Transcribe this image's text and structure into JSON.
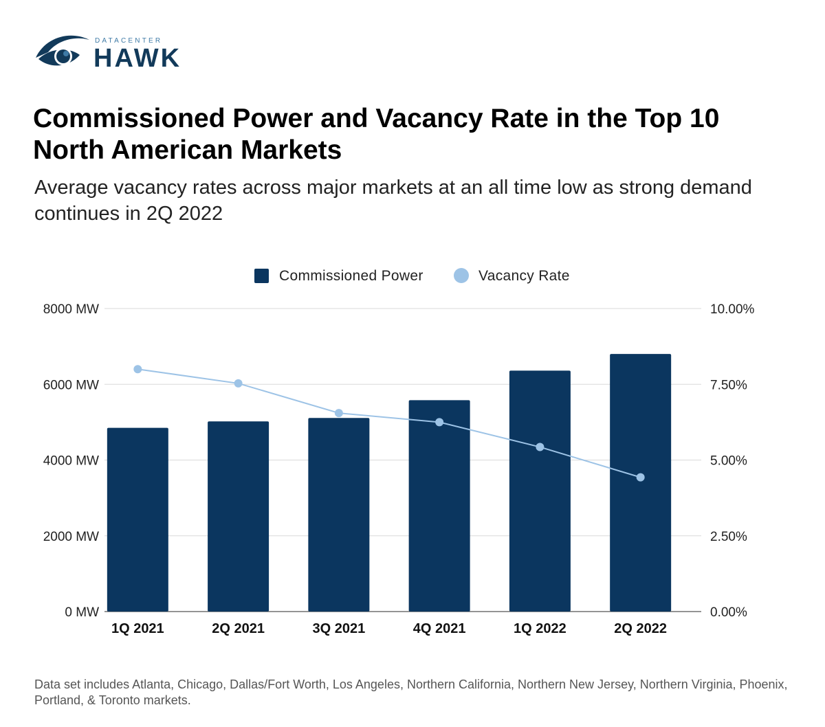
{
  "brand": {
    "small_text": "DATACENTER",
    "big_text": "HAWK",
    "icon": "eye-logo-icon",
    "colors": {
      "dark": "#123a5a",
      "accent": "#3e7aa6"
    }
  },
  "title": "Commissioned Power and Vacancy Rate in the Top 10 North American Markets",
  "subtitle": "Average vacancy rates across major markets at an all time low as strong demand continues in 2Q 2022",
  "footnote": "Data set includes Atlanta, Chicago, Dallas/Fort Worth, Los Angeles, Northern California, Northern New Jersey, Northern Virginia, Phoenix, Portland, & Toronto markets.",
  "chart_data": {
    "type": "bar",
    "categories": [
      "1Q 2021",
      "2Q 2021",
      "3Q 2021",
      "4Q 2021",
      "1Q 2022",
      "2Q 2022"
    ],
    "series": [
      {
        "name": "Commissioned Power",
        "type": "bar",
        "axis": "left",
        "color": "#0b365f",
        "values": [
          4850,
          5020,
          5110,
          5580,
          6360,
          6800
        ]
      },
      {
        "name": "Vacancy Rate",
        "type": "line",
        "axis": "right",
        "color": "#9dc3e6",
        "values": [
          8.0,
          7.53,
          6.55,
          6.25,
          5.43,
          4.43
        ]
      }
    ],
    "y_left": {
      "ylim": [
        0,
        8000
      ],
      "ticks": [
        0,
        2000,
        4000,
        6000,
        8000
      ],
      "tick_labels": [
        "0 MW",
        "2000 MW",
        "4000 MW",
        "6000 MW",
        "8000 MW"
      ]
    },
    "y_right": {
      "ylim": [
        0,
        10
      ],
      "ticks": [
        0,
        2.5,
        5,
        7.5,
        10
      ],
      "tick_labels": [
        "0.00%",
        "2.50%",
        "5.00%",
        "7.50%",
        "10.00%"
      ]
    },
    "grid": true,
    "legend_position": "top-center"
  }
}
